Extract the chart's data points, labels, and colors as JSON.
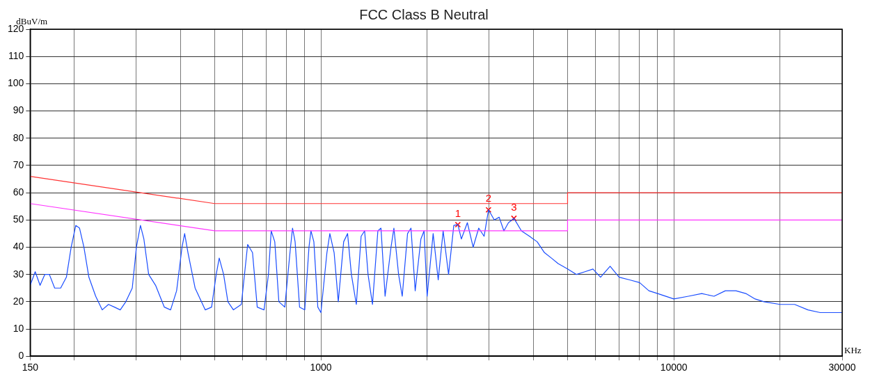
{
  "chart_data": {
    "type": "line",
    "title": "FCC Class B Neutral",
    "xlabel": "KHz",
    "ylabel": "dBuV/m",
    "log": "x",
    "grid": true,
    "legend": false,
    "xlim": [
      150,
      30000
    ],
    "xticks": [
      150,
      {
        "value": 200,
        "label": null
      },
      {
        "value": 300,
        "label": null
      },
      {
        "value": 400,
        "label": null
      },
      {
        "value": 500,
        "label": null
      },
      {
        "value": 600,
        "label": null
      },
      {
        "value": 700,
        "label": null
      },
      {
        "value": 800,
        "label": null
      },
      {
        "value": 900,
        "label": null
      },
      1000,
      {
        "value": 2000,
        "label": null
      },
      {
        "value": 3000,
        "label": null
      },
      {
        "value": 4000,
        "label": null
      },
      {
        "value": 5000,
        "label": null
      },
      {
        "value": 6000,
        "label": null
      },
      {
        "value": 7000,
        "label": null
      },
      {
        "value": 8000,
        "label": null
      },
      {
        "value": 9000,
        "label": null
      },
      10000,
      {
        "value": 20000,
        "label": null
      },
      30000
    ],
    "ylim": [
      0,
      120
    ],
    "yticks": [
      0,
      10,
      20,
      30,
      40,
      50,
      60,
      70,
      80,
      90,
      100,
      110,
      120
    ],
    "series": [
      {
        "type": "line",
        "color": "#ff3333",
        "x": [
          150,
          500,
          5000,
          5000,
          30000
        ],
        "values": [
          66,
          56,
          56,
          60,
          60
        ]
      },
      {
        "type": "line",
        "color": "#ff33ff",
        "x": [
          150,
          500,
          5000,
          5000,
          30000
        ],
        "values": [
          56,
          46,
          46,
          50,
          50
        ]
      },
      {
        "type": "line",
        "color": "#1a4dff",
        "x": [
          150,
          155,
          160,
          165,
          170,
          176,
          183,
          190,
          196,
          202,
          207,
          213,
          220,
          230,
          240,
          250,
          260,
          270,
          280,
          292,
          300,
          308,
          315,
          325,
          340,
          360,
          375,
          390,
          404,
          411,
          420,
          440,
          470,
          490,
          505,
          515,
          530,
          545,
          565,
          595,
          620,
          640,
          660,
          690,
          710,
          723,
          740,
          760,
          790,
          820,
          831,
          845,
          870,
          900,
          925,
          937,
          955,
          980,
          1000,
          1040,
          1060,
          1090,
          1120,
          1160,
          1190,
          1220,
          1260,
          1300,
          1330,
          1360,
          1400,
          1450,
          1480,
          1520,
          1580,
          1610,
          1660,
          1700,
          1760,
          1800,
          1850,
          1920,
          1960,
          2000,
          2080,
          2150,
          2220,
          2300,
          2380,
          2444,
          2500,
          2600,
          2700,
          2800,
          2900,
          2985,
          3100,
          3200,
          3300,
          3400,
          3523,
          3700,
          3900,
          4100,
          4300,
          4500,
          4700,
          5000,
          5300,
          5600,
          5900,
          6200,
          6600,
          7000,
          7500,
          8000,
          8500,
          9000,
          10000,
          11000,
          12000,
          13000,
          14000,
          15000,
          16000,
          17000,
          18000,
          20000,
          22000,
          24000,
          26000,
          28000,
          30000
        ],
        "values": [
          26,
          31,
          26,
          30,
          30,
          25,
          25,
          29,
          40,
          48,
          47,
          40,
          29,
          22,
          17,
          19,
          18,
          17,
          20,
          25,
          40,
          48,
          43,
          30,
          26,
          18,
          17,
          24,
          40,
          45,
          38,
          25,
          17,
          18,
          30,
          36,
          30,
          20,
          17,
          19,
          41,
          38,
          18,
          17,
          30,
          46,
          42,
          20,
          18,
          40,
          47,
          42,
          18,
          17,
          40,
          46,
          42,
          18,
          16,
          38,
          45,
          38,
          20,
          42,
          45,
          30,
          19,
          44,
          46,
          30,
          19,
          46,
          47,
          22,
          40,
          47,
          30,
          22,
          45,
          47,
          24,
          43,
          46,
          22,
          45,
          28,
          46,
          30,
          48,
          48.3,
          43,
          49,
          40,
          47,
          44,
          53.7,
          50,
          51,
          46,
          49,
          50.6,
          46,
          44,
          42,
          38,
          36,
          34,
          32,
          30,
          31,
          32,
          29,
          33,
          29,
          28,
          27,
          24,
          23,
          21,
          22,
          23,
          22,
          24,
          24,
          23,
          21,
          20,
          19,
          19,
          17,
          16,
          16,
          16
        ]
      },
      {
        "type": "scatter",
        "color": "#ff0000",
        "marker": "cross",
        "x": [
          2444,
          2985,
          3523
        ],
        "values": [
          48.3,
          53.7,
          50.6
        ]
      }
    ],
    "annotations": [
      {
        "text": "1",
        "x": 2444,
        "y": 48.3
      },
      {
        "text": "2",
        "x": 2985,
        "y": 53.7
      },
      {
        "text": "3",
        "x": 3523,
        "y": 50.6
      }
    ]
  }
}
